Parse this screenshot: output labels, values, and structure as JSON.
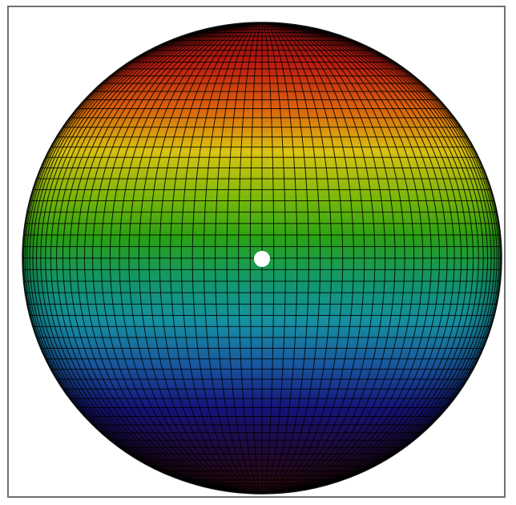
{
  "figure": {
    "type": "3d-surface-sphere",
    "colormap": [
      "#7a0c10",
      "#c41f12",
      "#e1650c",
      "#dfc712",
      "#84bd0a",
      "#2aa414",
      "#129a6c",
      "#1593a5",
      "#1a58a2",
      "#15147f",
      "#210a3c",
      "#3a0a0f"
    ],
    "mesh_color": "#000000",
    "frame_color": "#6f6f6f",
    "marker": {
      "shape": "circle",
      "color": "#ffffff"
    },
    "latitude_lines": 64,
    "longitude_lines": 64
  }
}
